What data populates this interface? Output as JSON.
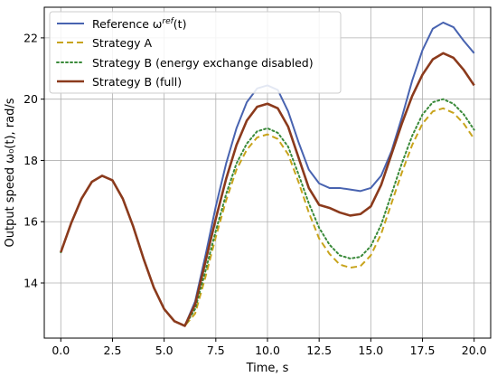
{
  "chart_data": {
    "type": "line",
    "xlabel": "Time, s",
    "ylabel": "Output speed ω₀(t), rad/s",
    "xlim": [
      -0.8,
      20.8
    ],
    "ylim": [
      12.2,
      23.0
    ],
    "xticks": [
      0.0,
      2.5,
      5.0,
      7.5,
      10.0,
      12.5,
      15.0,
      17.5,
      20.0
    ],
    "xtick_labels": [
      "0.0",
      "2.5",
      "5.0",
      "7.5",
      "10.0",
      "12.5",
      "15.0",
      "17.5",
      "20.0"
    ],
    "yticks": [
      14,
      16,
      18,
      20,
      22
    ],
    "ytick_labels": [
      "14",
      "16",
      "18",
      "20",
      "22"
    ],
    "grid": true,
    "legend_position": "top-left",
    "x": [
      0,
      0.5,
      1,
      1.5,
      2,
      2.5,
      3,
      3.5,
      4,
      4.5,
      5,
      5.5,
      6,
      6.5,
      7,
      7.5,
      8,
      8.5,
      9,
      9.5,
      10,
      10.5,
      11,
      11.5,
      12,
      12.5,
      13,
      13.5,
      14,
      14.5,
      15,
      15.5,
      16,
      16.5,
      17,
      17.5,
      18,
      18.5,
      19,
      19.5,
      20
    ],
    "series": [
      {
        "name": "Reference ω",
        "name_sup": "ref",
        "name_suffix": "(t)",
        "color": "#4863b0",
        "dash": "solid",
        "values": [
          15.0,
          15.95,
          16.75,
          17.3,
          17.5,
          17.35,
          16.75,
          15.85,
          14.8,
          13.85,
          13.15,
          12.75,
          12.6,
          13.4,
          14.9,
          16.5,
          17.9,
          19.05,
          19.9,
          20.35,
          20.45,
          20.3,
          19.6,
          18.6,
          17.7,
          17.25,
          17.1,
          17.1,
          17.05,
          17.0,
          17.1,
          17.5,
          18.3,
          19.4,
          20.6,
          21.6,
          22.3,
          22.5,
          22.35,
          21.9,
          21.5
        ]
      },
      {
        "name": "Strategy A",
        "color": "#c8a41c",
        "dash": "dashed",
        "values": [
          15.0,
          15.95,
          16.75,
          17.3,
          17.5,
          17.35,
          16.75,
          15.85,
          14.8,
          13.85,
          13.15,
          12.75,
          12.6,
          13.0,
          14.2,
          15.5,
          16.7,
          17.7,
          18.35,
          18.75,
          18.85,
          18.7,
          18.2,
          17.3,
          16.3,
          15.45,
          14.95,
          14.6,
          14.5,
          14.55,
          14.9,
          15.6,
          16.6,
          17.6,
          18.5,
          19.2,
          19.6,
          19.7,
          19.55,
          19.2,
          18.7
        ]
      },
      {
        "name": "Strategy B (energy exchange disabled)",
        "color": "#3a8a3a",
        "dash": "dotted",
        "values": [
          15.0,
          15.95,
          16.75,
          17.3,
          17.5,
          17.35,
          16.75,
          15.85,
          14.8,
          13.85,
          13.15,
          12.75,
          12.6,
          13.15,
          14.4,
          15.7,
          16.9,
          17.9,
          18.55,
          18.95,
          19.05,
          18.9,
          18.45,
          17.55,
          16.6,
          15.8,
          15.25,
          14.9,
          14.8,
          14.85,
          15.2,
          15.9,
          16.9,
          17.9,
          18.8,
          19.5,
          19.9,
          20.0,
          19.85,
          19.5,
          19.0
        ]
      },
      {
        "name": "Strategy B (full)",
        "color": "#8b3a1c",
        "dash": "solid",
        "values": [
          15.0,
          15.95,
          16.75,
          17.3,
          17.5,
          17.35,
          16.75,
          15.85,
          14.8,
          13.85,
          13.15,
          12.75,
          12.6,
          13.3,
          14.7,
          16.1,
          17.4,
          18.5,
          19.3,
          19.75,
          19.85,
          19.7,
          19.1,
          18.1,
          17.1,
          16.55,
          16.45,
          16.3,
          16.2,
          16.25,
          16.5,
          17.2,
          18.2,
          19.2,
          20.1,
          20.8,
          21.3,
          21.5,
          21.35,
          20.95,
          20.45
        ]
      }
    ]
  }
}
